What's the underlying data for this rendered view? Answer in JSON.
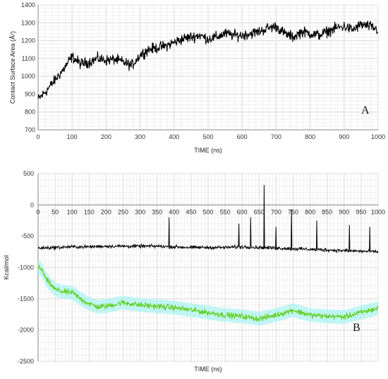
{
  "chart_data": [
    {
      "type": "line",
      "panel_label": "A",
      "title": "",
      "xlabel": "TIME (ns)",
      "ylabel": "Contact Surface Area (Å²)",
      "xlim": [
        0,
        1000
      ],
      "ylim": [
        700,
        1400
      ],
      "x_ticks": [
        0,
        100,
        200,
        300,
        400,
        500,
        600,
        700,
        800,
        900,
        1000
      ],
      "y_ticks": [
        700,
        800,
        900,
        1000,
        1100,
        1200,
        1300,
        1400
      ],
      "grid": true,
      "series": [
        {
          "color": "#000000",
          "x": [
            0,
            25,
            50,
            75,
            100,
            125,
            150,
            175,
            200,
            225,
            250,
            275,
            300,
            325,
            350,
            375,
            400,
            425,
            450,
            475,
            500,
            525,
            550,
            575,
            600,
            625,
            650,
            675,
            700,
            725,
            750,
            775,
            800,
            825,
            850,
            875,
            900,
            925,
            950,
            975,
            1000
          ],
          "values": [
            870,
            920,
            980,
            1040,
            1110,
            1070,
            1080,
            1100,
            1090,
            1095,
            1080,
            1060,
            1120,
            1150,
            1160,
            1170,
            1190,
            1210,
            1220,
            1230,
            1210,
            1220,
            1240,
            1230,
            1230,
            1240,
            1250,
            1270,
            1280,
            1240,
            1220,
            1250,
            1240,
            1230,
            1250,
            1270,
            1280,
            1260,
            1290,
            1280,
            1260
          ]
        }
      ]
    },
    {
      "type": "line",
      "panel_label": "B",
      "title": "",
      "xlabel": "TIME (ns)",
      "ylabel": "Kcal/mol",
      "xlim": [
        0,
        1000
      ],
      "ylim": [
        -2500,
        500
      ],
      "x_ticks": [
        0,
        50,
        100,
        150,
        200,
        250,
        300,
        350,
        400,
        450,
        500,
        550,
        600,
        650,
        700,
        750,
        800,
        850,
        900,
        950,
        1000
      ],
      "y_ticks": [
        -2500,
        -2000,
        -1500,
        -1000,
        -500,
        0,
        500
      ],
      "grid": true,
      "series": [
        {
          "color": "#000000",
          "x": [
            0,
            50,
            100,
            150,
            200,
            250,
            300,
            350,
            400,
            450,
            500,
            550,
            600,
            650,
            700,
            750,
            800,
            850,
            900,
            950,
            1000
          ],
          "values": [
            -690,
            -680,
            -670,
            -670,
            -660,
            -660,
            -660,
            -660,
            -670,
            -680,
            -680,
            -680,
            -670,
            -680,
            -690,
            -700,
            -710,
            -720,
            -730,
            -740,
            -750
          ],
          "spikes": [
            [
              385,
              -200
            ],
            [
              665,
              320
            ],
            [
              745,
              -70
            ],
            [
              590,
              -300
            ],
            [
              625,
              -200
            ],
            [
              820,
              -250
            ],
            [
              915,
              -320
            ],
            [
              975,
              -350
            ],
            [
              700,
              -350
            ]
          ]
        },
        {
          "color": "#5ecf1a",
          "band_color": "#aef3f3",
          "x": [
            0,
            10,
            25,
            50,
            75,
            100,
            125,
            150,
            175,
            200,
            250,
            300,
            350,
            400,
            450,
            500,
            550,
            600,
            650,
            700,
            750,
            800,
            850,
            900,
            950,
            1000
          ],
          "values": [
            -1000,
            -1030,
            -1200,
            -1350,
            -1390,
            -1400,
            -1500,
            -1580,
            -1630,
            -1620,
            -1560,
            -1600,
            -1620,
            -1640,
            -1680,
            -1720,
            -1760,
            -1780,
            -1820,
            -1760,
            -1680,
            -1760,
            -1780,
            -1790,
            -1720,
            -1650
          ]
        }
      ]
    }
  ]
}
